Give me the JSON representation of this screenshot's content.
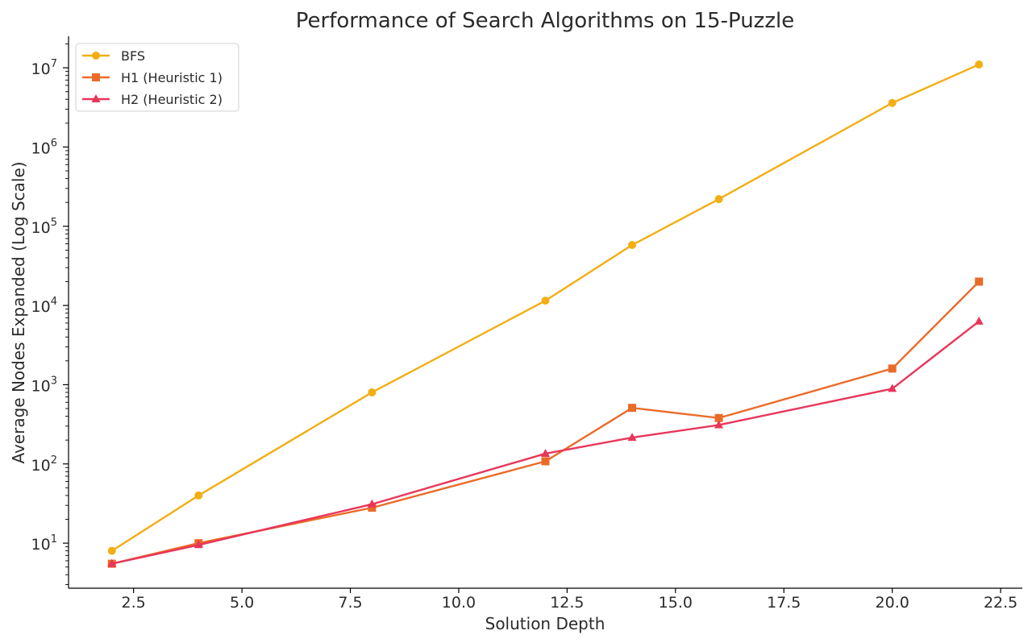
{
  "chart_data": {
    "type": "line",
    "title": "Performance of Search Algorithms on 15-Puzzle",
    "xlabel": "Solution Depth",
    "ylabel": "Average Nodes Expanded (Log Scale)",
    "yscale": "log",
    "xlim": [
      1.0,
      23.0
    ],
    "ylim": [
      2.7,
      25000000
    ],
    "xticks": [
      "2.5",
      "5.0",
      "7.5",
      "10.0",
      "12.5",
      "15.0",
      "17.5",
      "20.0",
      "22.5"
    ],
    "yticks": [
      {
        "base": "10",
        "exp": "1"
      },
      {
        "base": "10",
        "exp": "2"
      },
      {
        "base": "10",
        "exp": "3"
      },
      {
        "base": "10",
        "exp": "4"
      },
      {
        "base": "10",
        "exp": "5"
      },
      {
        "base": "10",
        "exp": "6"
      },
      {
        "base": "10",
        "exp": "7"
      }
    ],
    "legend_position": "top-left",
    "grid": false,
    "x": [
      2,
      4,
      8,
      12,
      14,
      16,
      20,
      22
    ],
    "series": [
      {
        "name": "BFS",
        "color": "#F2AE12",
        "marker": "circle",
        "values": [
          8,
          40,
          800,
          11500,
          58000,
          220000,
          3600000,
          11000000
        ]
      },
      {
        "name": "H1 (Heuristic 1)",
        "color": "#EA6B28",
        "marker": "square",
        "values": [
          5.5,
          10,
          28,
          108,
          510,
          380,
          1600,
          20000
        ]
      },
      {
        "name": "H2 (Heuristic 2)",
        "color": "#E8365A",
        "marker": "triangle",
        "values": [
          5.5,
          9.5,
          31,
          135,
          215,
          310,
          890,
          6300
        ]
      }
    ]
  }
}
